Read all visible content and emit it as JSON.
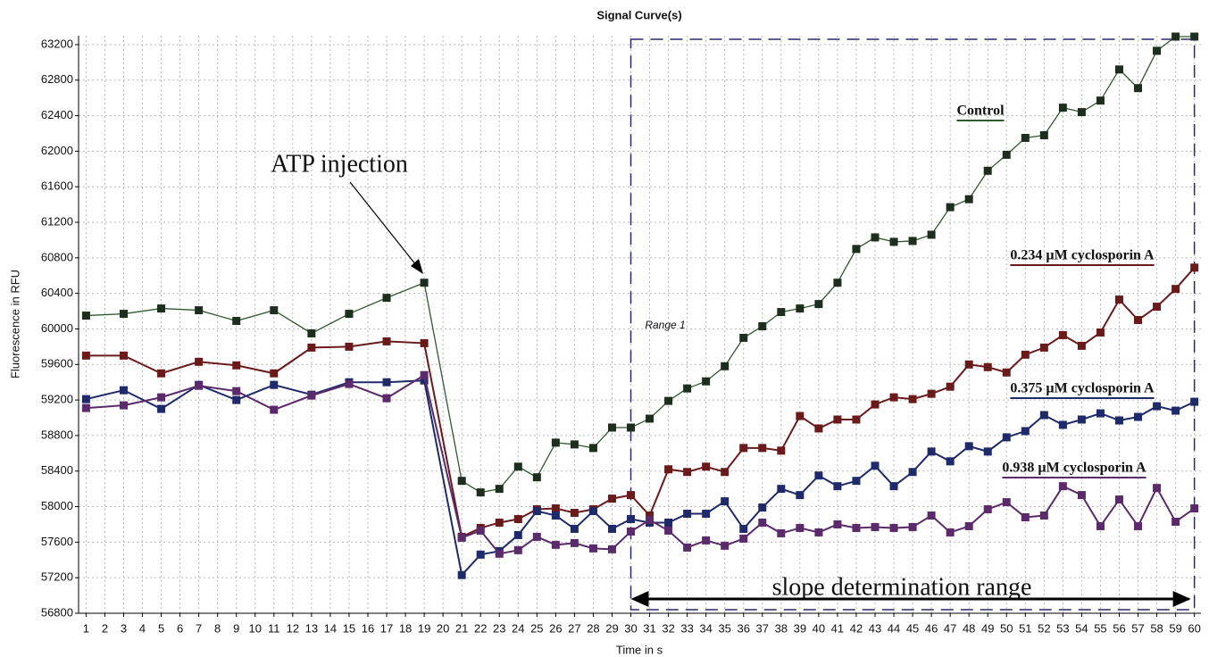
{
  "chart_data": {
    "type": "line",
    "title": "Signal Curve(s)",
    "x_label": "Time in s",
    "y_label": "Fluorescence in RFU",
    "x": [
      1,
      3,
      5,
      7,
      9,
      11,
      13,
      15,
      17,
      19,
      21,
      22,
      23,
      24,
      25,
      26,
      27,
      28,
      29,
      30,
      31,
      32,
      33,
      34,
      35,
      36,
      37,
      38,
      39,
      40,
      41,
      42,
      43,
      44,
      45,
      46,
      47,
      48,
      49,
      50,
      51,
      52,
      53,
      54,
      55,
      56,
      57,
      58,
      59,
      60
    ],
    "series": [
      {
        "name": "Control",
        "color": "#2f5a2f",
        "values": [
          60150,
          60170,
          60230,
          60210,
          60090,
          60210,
          59950,
          60170,
          60350,
          60520,
          58290,
          58160,
          58200,
          58450,
          58330,
          58720,
          58700,
          58660,
          58890,
          58890,
          58990,
          59190,
          59330,
          59410,
          59580,
          59900,
          60030,
          60190,
          60230,
          60280,
          60520,
          60900,
          61030,
          60980,
          60990,
          61060,
          61370,
          61460,
          61780,
          61960,
          62150,
          62180,
          62490,
          62440,
          62570,
          62920,
          62710,
          63130,
          63290,
          63290
        ]
      },
      {
        "name": "0.234 µM cyclosporin A",
        "color": "#6a1a1a",
        "values": [
          59700,
          59700,
          59500,
          59630,
          59590,
          59500,
          59790,
          59800,
          59860,
          59840,
          57660,
          57760,
          57820,
          57860,
          57970,
          57980,
          57930,
          57970,
          58090,
          58130,
          57900,
          58420,
          58390,
          58450,
          58390,
          58660,
          58660,
          58630,
          59020,
          58880,
          58980,
          58980,
          59150,
          59230,
          59210,
          59270,
          59350,
          59600,
          59570,
          59510,
          59710,
          59790,
          59930,
          59810,
          59960,
          60330,
          60100,
          60250,
          60450,
          60690
        ]
      },
      {
        "name": "0.375 µM cyclosporin A",
        "color": "#1f2a6a",
        "values": [
          59210,
          59310,
          59100,
          59370,
          59200,
          59370,
          59260,
          59400,
          59400,
          59420,
          57230,
          57460,
          57500,
          57680,
          57950,
          57900,
          57750,
          57950,
          57750,
          57860,
          57820,
          57820,
          57920,
          57920,
          58060,
          57750,
          57990,
          58200,
          58130,
          58350,
          58230,
          58290,
          58460,
          58230,
          58390,
          58620,
          58510,
          58680,
          58620,
          58780,
          58850,
          59030,
          58920,
          58980,
          59050,
          58970,
          59010,
          59130,
          59080,
          59180
        ]
      },
      {
        "name": "0.938 µM cyclosporin A",
        "color": "#5a2a6a",
        "values": [
          59110,
          59140,
          59230,
          59360,
          59300,
          59090,
          59250,
          59380,
          59220,
          59480,
          57650,
          57730,
          57470,
          57510,
          57660,
          57570,
          57590,
          57530,
          57520,
          57720,
          57850,
          57730,
          57540,
          57620,
          57560,
          57640,
          57820,
          57700,
          57760,
          57710,
          57800,
          57760,
          57770,
          57760,
          57770,
          57900,
          57710,
          57780,
          57970,
          58050,
          57880,
          57900,
          58230,
          58130,
          57780,
          58080,
          57780,
          58210,
          57830,
          57980
        ]
      }
    ],
    "xlim": [
      0.6,
      60.35
    ],
    "ylim": [
      56800,
      63300
    ],
    "xticks": [
      1,
      2,
      3,
      4,
      5,
      6,
      7,
      8,
      9,
      10,
      11,
      12,
      13,
      14,
      15,
      16,
      17,
      18,
      19,
      20,
      21,
      22,
      23,
      24,
      25,
      26,
      27,
      28,
      29,
      30,
      31,
      32,
      33,
      34,
      35,
      36,
      37,
      38,
      39,
      40,
      41,
      42,
      43,
      44,
      45,
      46,
      47,
      48,
      49,
      50,
      51,
      52,
      53,
      54,
      55,
      56,
      57,
      58,
      59,
      60
    ],
    "yticks": [
      56800,
      57200,
      57600,
      58000,
      58400,
      58800,
      59200,
      59600,
      60000,
      60400,
      60800,
      61200,
      61600,
      62000,
      62400,
      62800,
      63200
    ],
    "grid": true,
    "annotations": {
      "injection": "ATP injection",
      "range": "Range 1",
      "slope": "slope determination range"
    },
    "range_xlim": [
      30,
      60
    ]
  }
}
